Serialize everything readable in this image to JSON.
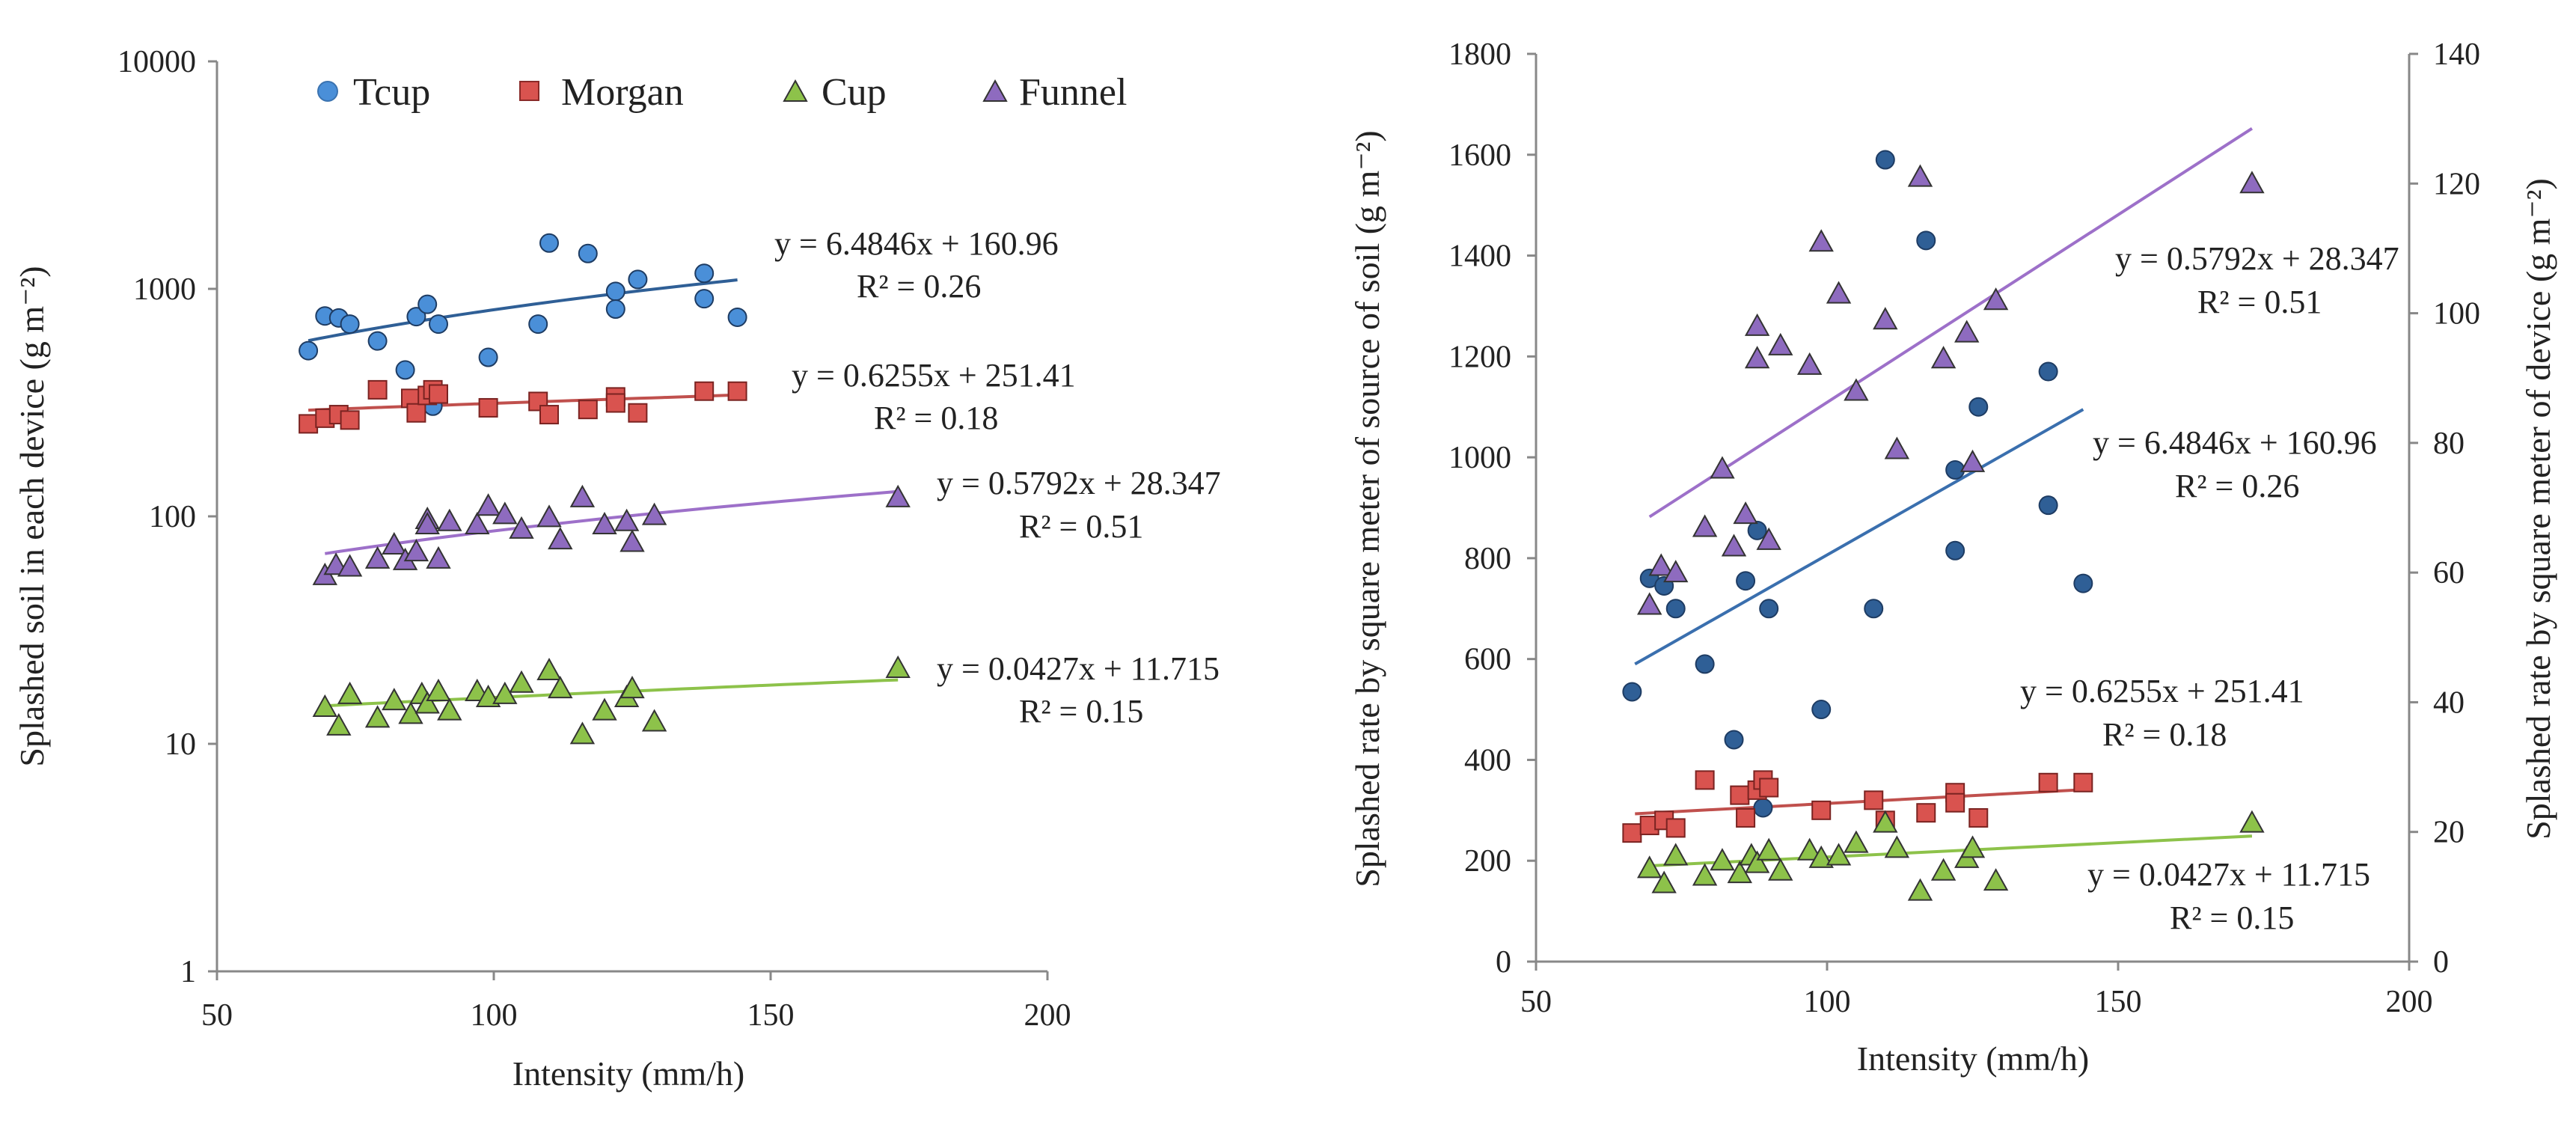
{
  "chart_data": [
    {
      "type": "scatter",
      "panel": "left",
      "yscale": "log",
      "xlabel": "Intensity (mm/h)",
      "ylabel": "Splashed soil in each device (g m⁻²)",
      "xlim": [
        50,
        200
      ],
      "ylim": [
        1,
        10000
      ],
      "xticks": [
        "50",
        "100",
        "150",
        "200"
      ],
      "yticks": [
        "1",
        "10",
        "100",
        "1000",
        "10000"
      ],
      "legend": [
        {
          "name": "Tcup",
          "marker": "circle",
          "color": "#4A8FD8"
        },
        {
          "name": "Morgan",
          "marker": "square",
          "color": "#D9534F"
        },
        {
          "name": "Cup",
          "marker": "triangle",
          "color": "#8DC24A"
        },
        {
          "name": "Funnel",
          "marker": "triangle",
          "color": "#8E6BBF"
        }
      ],
      "series": [
        {
          "name": "Tcup",
          "color": "#4A8FD8",
          "line_color": "#2F5F96",
          "marker": "circle",
          "x": [
            66.5,
            69.5,
            72,
            74,
            79,
            84,
            86,
            88,
            89,
            90,
            99,
            108,
            110,
            117,
            122,
            122,
            126,
            138,
            138,
            144
          ],
          "y": [
            535,
            760,
            745,
            700,
            590,
            440,
            755,
            855,
            305,
            700,
            500,
            700,
            1590,
            1430,
            975,
            815,
            1100,
            1170,
            905,
            750
          ],
          "trend_range": [
            66.5,
            144
          ]
        },
        {
          "name": "Morgan",
          "color": "#D9534F",
          "line_color": "#C0504D",
          "marker": "square",
          "x": [
            66.5,
            69.5,
            72,
            74,
            79,
            85,
            86,
            88,
            89,
            90,
            99,
            108,
            110,
            117,
            122,
            122,
            126,
            138,
            144
          ],
          "y": [
            255,
            270,
            280,
            265,
            360,
            330,
            285,
            340,
            360,
            345,
            300,
            320,
            280,
            295,
            335,
            315,
            285,
            355,
            355
          ],
          "trend_range": [
            66.5,
            144
          ]
        },
        {
          "name": "Cup",
          "color": "#8DC24A",
          "line_color": "#8DC24A",
          "marker": "triangle",
          "x": [
            69.5,
            72,
            74,
            79,
            82,
            85,
            87,
            88,
            90,
            92,
            97,
            99,
            102,
            105,
            110,
            112,
            116,
            120,
            124,
            125,
            129,
            173
          ],
          "y": [
            14.5,
            12,
            16.5,
            13,
            15.5,
            13.5,
            16.5,
            15,
            17,
            14,
            17,
            16,
            16.5,
            18.5,
            21,
            17.5,
            11,
            14,
            16,
            17.5,
            12.5,
            21.5
          ],
          "trend_range": [
            69.5,
            173
          ]
        },
        {
          "name": "Funnel",
          "color": "#8E6BBF",
          "line_color": "#9D70C9",
          "marker": "triangle",
          "x": [
            69.5,
            71.5,
            74,
            79,
            82,
            84,
            86,
            88,
            88,
            90,
            92,
            97,
            99,
            102,
            105,
            110,
            112,
            116,
            120,
            124,
            125,
            129,
            173
          ],
          "y": [
            55,
            61,
            60,
            65,
            75,
            64,
            70,
            97,
            92,
            65,
            95,
            92,
            111,
            102,
            88,
            99,
            79,
            121,
            92,
            95,
            77,
            101,
            121
          ],
          "trend_range": [
            69.5,
            173
          ]
        }
      ],
      "equations": [
        {
          "series": "Tcup",
          "equation": "y = 6.4846x + 160.96",
          "r2": "R² = 0.26"
        },
        {
          "series": "Morgan",
          "equation": "y = 0.6255x + 251.41",
          "r2": "R² = 0.18"
        },
        {
          "series": "Funnel",
          "equation": "y = 0.5792x + 28.347",
          "r2": "R² = 0.51"
        },
        {
          "series": "Cup",
          "equation": "y = 0.0427x + 11.715",
          "r2": "R² = 0.15"
        }
      ]
    },
    {
      "type": "scatter",
      "panel": "right",
      "yscale": "linear",
      "xlabel": "Intensity (mm/h)",
      "ylabel": "Splashed rate by square meter of source of soil (g m⁻²)",
      "y2label": "Splashed rate by square meter of device (g m⁻²)",
      "xlim": [
        50,
        200
      ],
      "ylim": [
        0,
        1800
      ],
      "y2lim": [
        0,
        140
      ],
      "xticks": [
        "50",
        "100",
        "150",
        "200"
      ],
      "yticks": [
        "0",
        "200",
        "400",
        "600",
        "800",
        "1000",
        "1200",
        "1400",
        "1600",
        "1800"
      ],
      "y2ticks": [
        "0",
        "20",
        "40",
        "60",
        "80",
        "100",
        "120",
        "140"
      ],
      "series": [
        {
          "name": "Tcup",
          "axis": "left",
          "color": "#2F5F96",
          "line_color": "#3A6FAE",
          "marker": "circle",
          "x": [
            66.5,
            69.5,
            72,
            74,
            79,
            84,
            86,
            88,
            89,
            90,
            99,
            108,
            110,
            117,
            122,
            122,
            126,
            138,
            138,
            144
          ],
          "y": [
            535,
            760,
            745,
            700,
            590,
            440,
            755,
            855,
            305,
            700,
            500,
            700,
            1590,
            1430,
            975,
            815,
            1100,
            1170,
            905,
            750
          ],
          "trend": [
            [
              67,
              590
            ],
            [
              144,
              1095
            ]
          ]
        },
        {
          "name": "Morgan",
          "axis": "left",
          "color": "#D9534F",
          "line_color": "#C0504D",
          "marker": "square",
          "x": [
            66.5,
            69.5,
            72,
            74,
            79,
            85,
            86,
            88,
            89,
            90,
            99,
            108,
            110,
            117,
            122,
            122,
            126,
            138,
            144
          ],
          "y": [
            255,
            270,
            280,
            265,
            360,
            330,
            285,
            340,
            360,
            345,
            300,
            320,
            280,
            295,
            335,
            315,
            285,
            355,
            355
          ],
          "trend": [
            [
              67,
              293
            ],
            [
              144,
              341
            ]
          ]
        },
        {
          "name": "Cup",
          "axis": "left",
          "color": "#8DC24A",
          "line_color": "#8DC24A",
          "marker": "triangle",
          "x": [
            69.5,
            72,
            74,
            79,
            82,
            85,
            87,
            88,
            90,
            92,
            97,
            99,
            102,
            105,
            110,
            112,
            116,
            120,
            124,
            125,
            129,
            173
          ],
          "y": [
            185,
            155,
            210,
            170,
            200,
            175,
            210,
            195,
            220,
            180,
            220,
            205,
            210,
            235,
            275,
            225,
            140,
            180,
            205,
            225,
            160,
            275
          ],
          "trend": [
            [
              69.5,
              190
            ],
            [
              173,
              249
            ]
          ]
        },
        {
          "name": "Funnel",
          "axis": "right",
          "color": "#8E6BBF",
          "line_color": "#9D70C9",
          "marker": "triangle",
          "x": [
            69.5,
            71.5,
            74,
            79,
            82,
            84,
            86,
            88,
            88,
            90,
            92,
            97,
            99,
            102,
            105,
            110,
            112,
            116,
            120,
            124,
            125,
            129,
            173
          ],
          "y": [
            55,
            61,
            60,
            67,
            76,
            64,
            69,
            98,
            93,
            65,
            95,
            92,
            111,
            103,
            88,
            99,
            79,
            121,
            93,
            97,
            77,
            102,
            120
          ],
          "trend": [
            [
              69.5,
              68.6
            ],
            [
              173,
              128.5
            ]
          ]
        }
      ],
      "equations": [
        {
          "series": "Funnel",
          "equation": "y = 0.5792x + 28.347",
          "r2": "R² = 0.51"
        },
        {
          "series": "Tcup",
          "equation": "y = 6.4846x + 160.96",
          "r2": "R² = 0.26"
        },
        {
          "series": "Morgan",
          "equation": "y = 0.6255x + 251.41",
          "r2": "R² = 0.18"
        },
        {
          "series": "Cup",
          "equation": "y = 0.0427x + 11.715",
          "r2": "R² = 0.15"
        }
      ]
    }
  ]
}
